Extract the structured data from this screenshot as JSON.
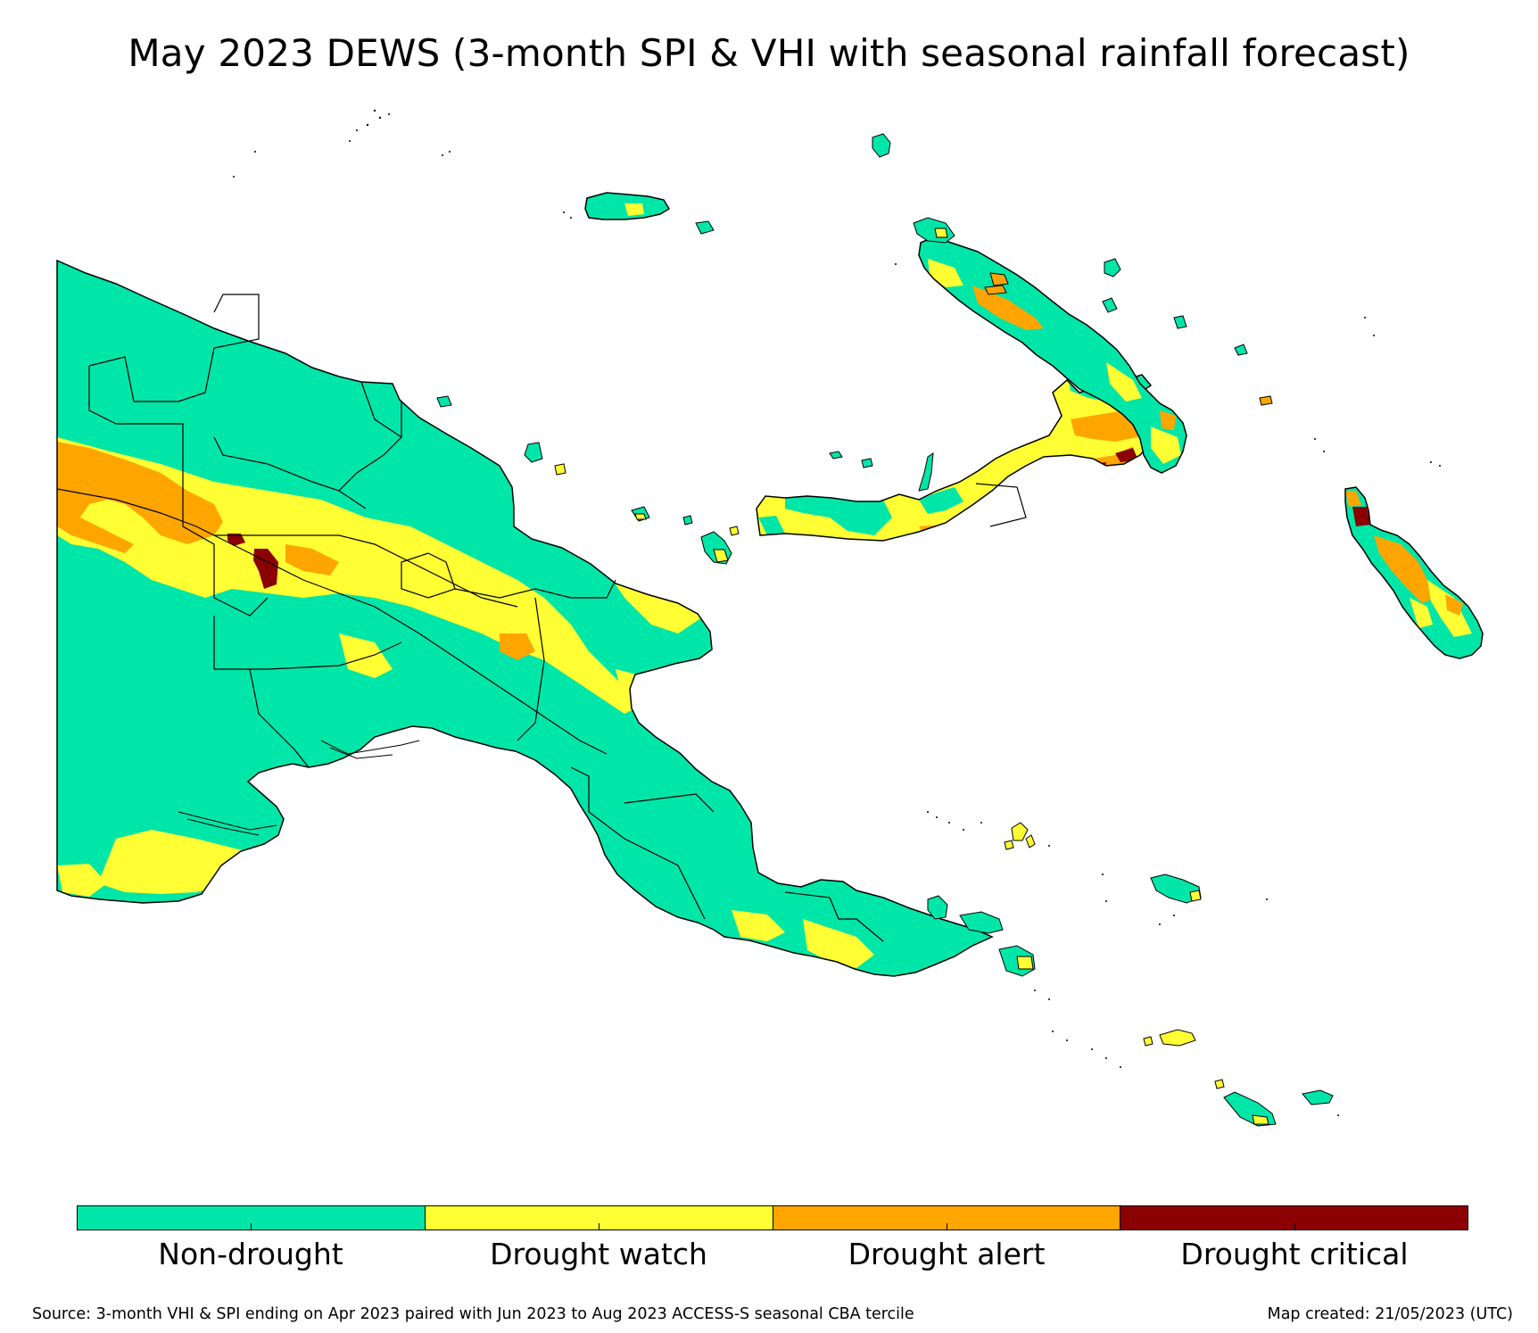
{
  "title": "May 2023 DEWS (3-month SPI & VHI with seasonal rainfall forecast)",
  "legend": {
    "categories": [
      {
        "label": "Non-drought",
        "color": "#00e6a8"
      },
      {
        "label": "Drought watch",
        "color": "#ffff33"
      },
      {
        "label": "Drought alert",
        "color": "#ffa500"
      },
      {
        "label": "Drought critical",
        "color": "#8b0000"
      }
    ]
  },
  "map": {
    "region": "Papua New Guinea",
    "borders_color": "#000000",
    "background": "#ffffff"
  },
  "footer": {
    "source": "Source: 3-month VHI & SPI ending on Apr 2023 paired with Jun 2023 to Aug 2023 ACCESS-S seasonal CBA tercile",
    "created": "Map created: 21/05/2023 (UTC)"
  }
}
